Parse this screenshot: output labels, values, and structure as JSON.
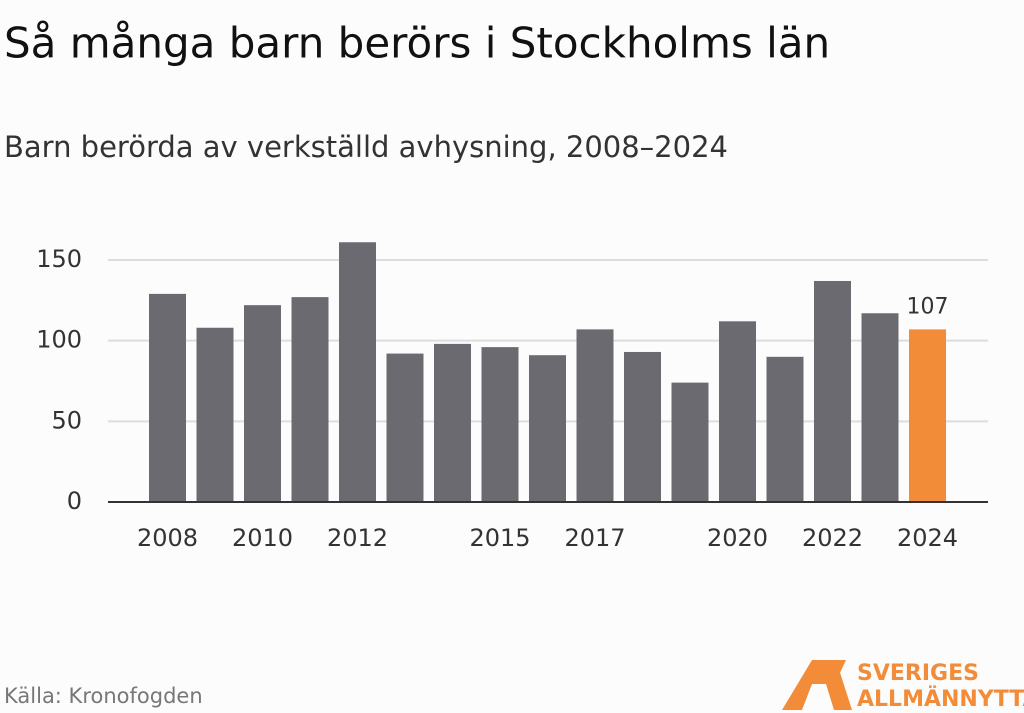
{
  "chart_data": {
    "type": "bar",
    "title": "Så många barn berörs i Stockholms län",
    "subtitle": "Barn berörda av verkställd avhysning, 2008–2024",
    "categories": [
      "2008",
      null,
      "2010",
      null,
      "2012",
      null,
      null,
      "2015",
      null,
      "2017",
      null,
      null,
      "2020",
      null,
      "2022",
      null,
      "2024"
    ],
    "values": [
      129,
      108,
      122,
      127,
      161,
      92,
      98,
      96,
      91,
      107,
      93,
      74,
      112,
      90,
      137,
      117,
      107
    ],
    "color": "#6b6a70",
    "colors": [
      "#6b6a70",
      "#6b6a70",
      "#6b6a70",
      "#6b6a70",
      "#6b6a70",
      "#6b6a70",
      "#6b6a70",
      "#6b6a70",
      "#6b6a70",
      "#6b6a70",
      "#6b6a70",
      "#6b6a70",
      "#6b6a70",
      "#6b6a70",
      "#6b6a70",
      "#6b6a70",
      "#f28c38"
    ],
    "ylim": [
      0,
      165
    ],
    "yticks": [
      0,
      50,
      100,
      150
    ],
    "grid": true,
    "source": "Källa: Kronofogden"
  },
  "logo": {
    "line1": "SVERIGES",
    "line2": "ALLMÄNNYTTA"
  }
}
